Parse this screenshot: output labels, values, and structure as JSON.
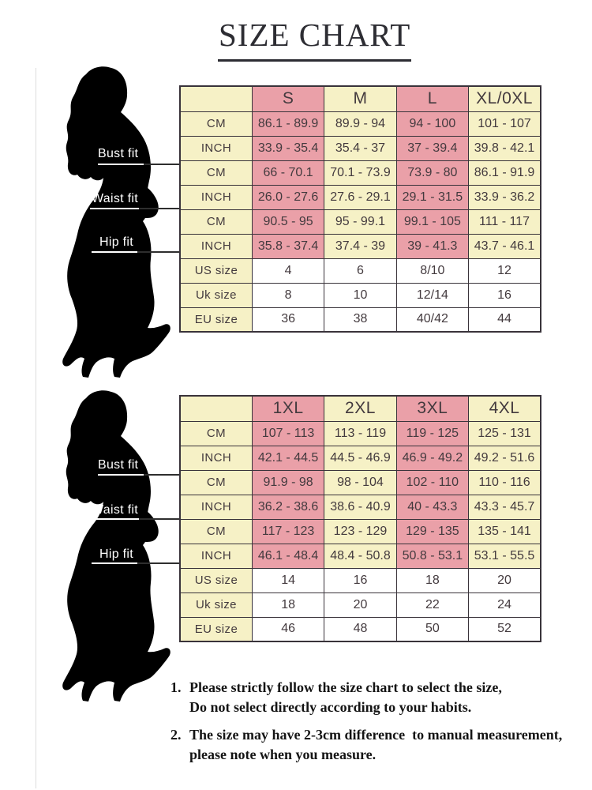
{
  "title": "SIZE CHART",
  "fit_labels": [
    "Bust fit",
    "Waist fit",
    "Hip fit"
  ],
  "colors": {
    "pink": "#EAA0A8",
    "cream": "#F6F1C6",
    "white": "#FFFFFF",
    "border": "#39333A",
    "silhouette": "#000000"
  },
  "tables": [
    {
      "sizes": [
        "S",
        "M",
        "L",
        "XL/0XL"
      ],
      "rows": [
        {
          "label": "CM",
          "values": [
            "86.1 - 89.9",
            "89.9 - 94",
            "94 - 100",
            "101 - 107"
          ]
        },
        {
          "label": "INCH",
          "values": [
            "33.9 - 35.4",
            "35.4 - 37",
            "37 - 39.4",
            "39.8 - 42.1"
          ]
        },
        {
          "label": "CM",
          "values": [
            "66 - 70.1",
            "70.1 - 73.9",
            "73.9 - 80",
            "86.1 - 91.9"
          ]
        },
        {
          "label": "INCH",
          "values": [
            "26.0 - 27.6",
            "27.6 - 29.1",
            "29.1 - 31.5",
            "33.9 - 36.2"
          ]
        },
        {
          "label": "CM",
          "values": [
            "90.5 - 95",
            "95 - 99.1",
            "99.1 - 105",
            "111 - 117"
          ]
        },
        {
          "label": "INCH",
          "values": [
            "35.8 - 37.4",
            "37.4 - 39",
            "39 - 41.3",
            "43.7 - 46.1"
          ]
        },
        {
          "label": "US size",
          "values": [
            "4",
            "6",
            "8/10",
            "12"
          ]
        },
        {
          "label": "Uk size",
          "values": [
            "8",
            "10",
            "12/14",
            "16"
          ]
        },
        {
          "label": "EU size",
          "values": [
            "36",
            "38",
            "40/42",
            "44"
          ]
        }
      ]
    },
    {
      "sizes": [
        "1XL",
        "2XL",
        "3XL",
        "4XL"
      ],
      "rows": [
        {
          "label": "CM",
          "values": [
            "107 - 113",
            "113 - 119",
            "119 - 125",
            "125 - 131"
          ]
        },
        {
          "label": "INCH",
          "values": [
            "42.1 - 44.5",
            "44.5 - 46.9",
            "46.9 - 49.2",
            "49.2 - 51.6"
          ]
        },
        {
          "label": "CM",
          "values": [
            "91.9 - 98",
            "98 - 104",
            "102 - 110",
            "110 - 116"
          ]
        },
        {
          "label": "INCH",
          "values": [
            "36.2 - 38.6",
            "38.6 - 40.9",
            "40 - 43.3",
            "43.3 - 45.7"
          ]
        },
        {
          "label": "CM",
          "values": [
            "117 - 123",
            "123 - 129",
            "129 - 135",
            "135 - 141"
          ]
        },
        {
          "label": "INCH",
          "values": [
            "46.1 - 48.4",
            "48.4 - 50.8",
            "50.8 - 53.1",
            "53.1 - 55.5"
          ]
        },
        {
          "label": "US size",
          "values": [
            "14",
            "16",
            "18",
            "20"
          ]
        },
        {
          "label": "Uk size",
          "values": [
            "18",
            "20",
            "22",
            "24"
          ]
        },
        {
          "label": "EU size",
          "values": [
            "46",
            "48",
            "50",
            "52"
          ]
        }
      ]
    }
  ],
  "notes": [
    {
      "num": "1.",
      "lines": [
        "Please strictly follow the size chart to select the size,",
        "Do not select directly according to your habits."
      ]
    },
    {
      "num": "2.",
      "lines": [
        "The size may have 2-3cm difference  to manual measurement,",
        "please note when you measure."
      ]
    }
  ]
}
